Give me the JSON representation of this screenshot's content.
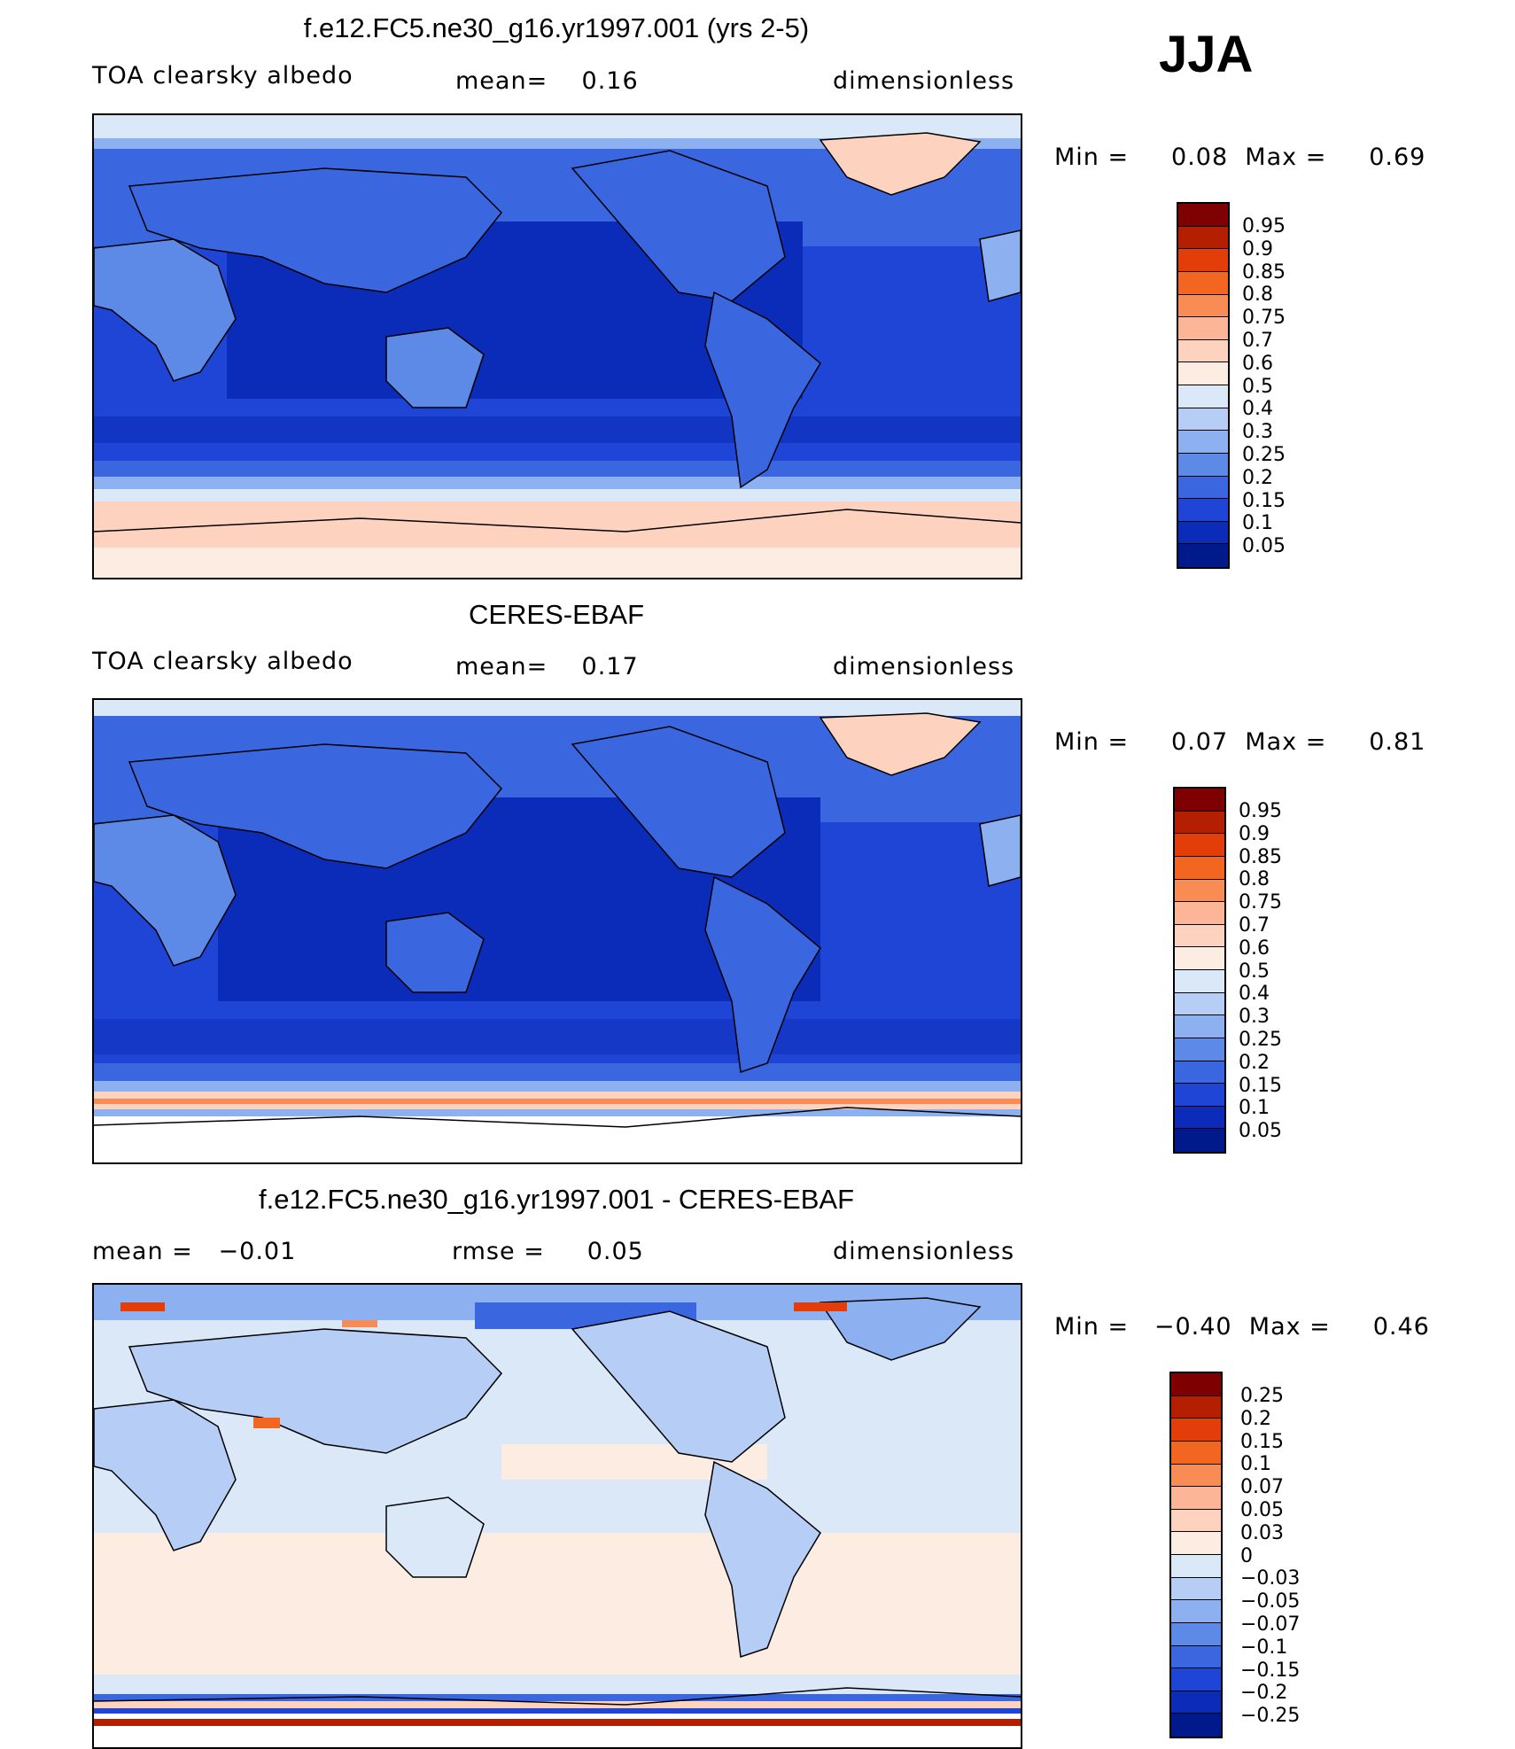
{
  "season": "JJA",
  "panels": [
    {
      "title": "f.e12.FC5.ne30_g16.yr1997.001 (yrs 2-5)",
      "left": "TOA clearsky albedo",
      "mid": "mean=    0.16",
      "right": "dimensionless",
      "minmax": "Min =     0.08  Max =     0.69",
      "colorbar": {
        "levels": [
          "0.95",
          "0.9",
          "0.85",
          "0.8",
          "0.75",
          "0.7",
          "0.6",
          "0.5",
          "0.4",
          "0.3",
          "0.25",
          "0.2",
          "0.15",
          "0.1",
          "0.05"
        ],
        "colors": [
          "#7f0000",
          "#b31f00",
          "#e33d0a",
          "#f26622",
          "#f98b55",
          "#fcb596",
          "#fdd3c0",
          "#fdece2",
          "#dbe8f8",
          "#b6cdf5",
          "#8cb0f0",
          "#5d8ae6",
          "#3a66e0",
          "#1f45d6",
          "#0b2cb8",
          "#001a8c"
        ]
      }
    },
    {
      "title": "CERES-EBAF",
      "left": "TOA clearsky albedo",
      "mid": "mean=    0.17",
      "right": "dimensionless",
      "minmax": "Min =     0.07  Max =     0.81",
      "colorbar": {
        "levels": [
          "0.95",
          "0.9",
          "0.85",
          "0.8",
          "0.75",
          "0.7",
          "0.6",
          "0.5",
          "0.4",
          "0.3",
          "0.25",
          "0.2",
          "0.15",
          "0.1",
          "0.05"
        ],
        "colors": [
          "#7f0000",
          "#b31f00",
          "#e33d0a",
          "#f26622",
          "#f98b55",
          "#fcb596",
          "#fdd3c0",
          "#fdece2",
          "#dbe8f8",
          "#b6cdf5",
          "#8cb0f0",
          "#5d8ae6",
          "#3a66e0",
          "#1f45d6",
          "#0b2cb8",
          "#001a8c"
        ]
      }
    },
    {
      "title": "f.e12.FC5.ne30_g16.yr1997.001 - CERES-EBAF",
      "left": "mean =   −0.01",
      "mid": "rmse =     0.05",
      "right": "dimensionless",
      "minmax": "Min =   −0.40  Max =     0.46",
      "colorbar": {
        "levels": [
          "0.25",
          "0.2",
          "0.15",
          "0.1",
          "0.07",
          "0.05",
          "0.03",
          "0",
          "−0.03",
          "−0.05",
          "−0.07",
          "−0.1",
          "−0.15",
          "−0.2",
          "−0.25"
        ],
        "colors": [
          "#7f0000",
          "#b31f00",
          "#e33d0a",
          "#f26622",
          "#f98b55",
          "#fcb596",
          "#fdd3c0",
          "#fdece2",
          "#dbe8f8",
          "#b6cdf5",
          "#8cb0f0",
          "#5d8ae6",
          "#3a66e0",
          "#1f45d6",
          "#0b2cb8",
          "#001a8c"
        ]
      }
    }
  ]
}
